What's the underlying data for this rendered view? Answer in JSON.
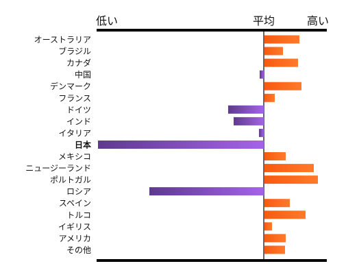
{
  "chart_data": {
    "type": "bar",
    "orientation": "horizontal",
    "header_labels": {
      "low": "低い",
      "average": "平均",
      "high": "高い"
    },
    "categories": [
      "オーストラリア",
      "ブラジル",
      "カナダ",
      "中国",
      "デンマーク",
      "フランス",
      "ドイツ",
      "インド",
      "イタリア",
      "日本",
      "メキシコ",
      "ニュージーランド",
      "ポルトガル",
      "ロシア",
      "スペイン",
      "トルコ",
      "イギリス",
      "アメリカ",
      "その他"
    ],
    "values": [
      51,
      27,
      49,
      -6,
      54,
      15,
      -52,
      -44,
      -7,
      -242,
      31,
      72,
      78,
      -167,
      37,
      60,
      11,
      31,
      30
    ],
    "highlight_category": "日本",
    "colors": {
      "positive": "#ff6a1a",
      "positive_light": "#f85a10",
      "negative_dark": "#5e3a8e",
      "negative_light": "#a463e8",
      "axis": "#000000"
    },
    "xlim": [
      -245,
      95
    ],
    "grid": false,
    "legend": "none"
  }
}
